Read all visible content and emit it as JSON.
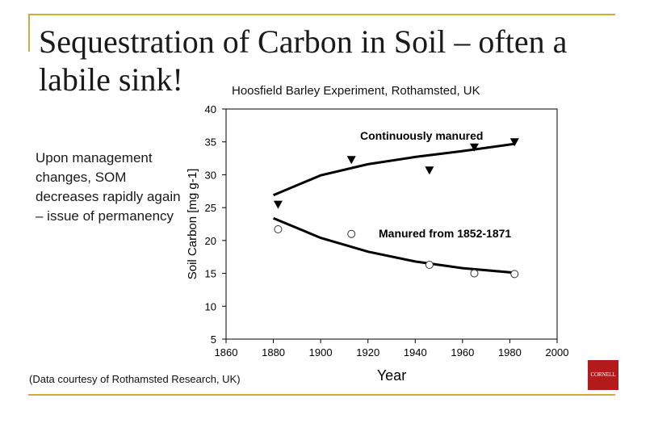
{
  "slide": {
    "title": "Sequestration of Carbon in Soil – often a labile sink!",
    "subtitle": "Hoosfield Barley Experiment, Rothamsted, UK",
    "note": "Upon management changes, SOM decreases rapidly again – issue of permanency",
    "credit": "(Data courtesy of Rothamsted Research, UK)",
    "logo_text": "CORNELL",
    "accent_color": "#c9b032",
    "logo_color": "#b31b1b"
  },
  "chart_data": {
    "type": "scatter",
    "title": "",
    "xlabel": "Year",
    "ylabel": "Soil Carbon [mg g-1]",
    "xlim": [
      1860,
      2000
    ],
    "ylim": [
      5,
      40
    ],
    "xticks": [
      1860,
      1880,
      1900,
      1920,
      1940,
      1960,
      1980,
      2000
    ],
    "yticks": [
      5,
      10,
      15,
      20,
      25,
      30,
      35,
      40
    ],
    "grid": false,
    "series": [
      {
        "name": "Continuously manured",
        "marker": "filled-triangle-down",
        "points": [
          [
            1882,
            25.5
          ],
          [
            1913,
            32.3
          ],
          [
            1946,
            30.7
          ],
          [
            1965,
            34.2
          ],
          [
            1982,
            35.0
          ]
        ],
        "fit": [
          [
            1880,
            26.9
          ],
          [
            1900,
            29.9
          ],
          [
            1920,
            31.6
          ],
          [
            1940,
            32.7
          ],
          [
            1960,
            33.6
          ],
          [
            1982,
            34.7
          ]
        ]
      },
      {
        "name": "Manured from 1852-1871",
        "marker": "open-circle",
        "points": [
          [
            1882,
            21.7
          ],
          [
            1913,
            21.0
          ],
          [
            1946,
            16.3
          ],
          [
            1965,
            15.0
          ],
          [
            1982,
            14.9
          ]
        ],
        "fit": [
          [
            1880,
            23.4
          ],
          [
            1900,
            20.4
          ],
          [
            1920,
            18.3
          ],
          [
            1940,
            16.8
          ],
          [
            1960,
            15.8
          ],
          [
            1982,
            15.1
          ]
        ]
      }
    ]
  }
}
